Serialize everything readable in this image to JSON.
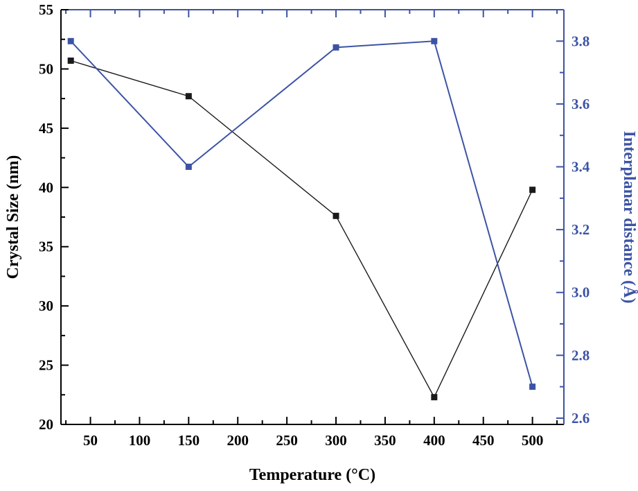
{
  "figure": {
    "background": "#ffffff"
  },
  "chart_data": {
    "type": "line",
    "title": "",
    "xlabel": "Temperature (°C)",
    "ylabel_left": "Crystal Size (nm)",
    "ylabel_right": "Interplanar distance (Å)",
    "x": [
      30,
      150,
      300,
      400,
      500
    ],
    "series": [
      {
        "name": "Crystal Size (nm)",
        "axis": "left",
        "color": "#1a1a1a",
        "marker": "square",
        "values": [
          50.7,
          47.7,
          37.6,
          22.3,
          39.8
        ]
      },
      {
        "name": "Interplanar distance (Å)",
        "axis": "right",
        "color": "#3c53a4",
        "marker": "square",
        "values": [
          3.8,
          3.4,
          3.78,
          3.8,
          2.7
        ]
      }
    ],
    "xlim": [
      20,
      532
    ],
    "x_ticks": [
      50,
      100,
      150,
      200,
      250,
      300,
      350,
      400,
      450,
      500
    ],
    "x_tick_labels": [
      "50",
      "100",
      "150",
      "200",
      "250",
      "300",
      "350",
      "400",
      "450",
      "500"
    ],
    "x_minor_step": 25,
    "ylim_left": [
      20,
      55
    ],
    "y_ticks_left": [
      20,
      25,
      30,
      35,
      40,
      45,
      50,
      55
    ],
    "y_tick_labels_left": [
      "20",
      "25",
      "30",
      "35",
      "40",
      "45",
      "50",
      "55"
    ],
    "y_minor_step_left": 2.5,
    "ylim_right": [
      2.58,
      3.9
    ],
    "y_ticks_right": [
      2.6,
      2.8,
      3.0,
      3.2,
      3.4,
      3.6,
      3.8
    ],
    "y_tick_labels_right": [
      "2.6",
      "2.8",
      "3.0",
      "3.2",
      "3.4",
      "3.6",
      "3.8"
    ],
    "y_minor_step_right": 0.1,
    "axis_color_left": "#000000",
    "axis_color_right": "#3c53a4",
    "grid": false,
    "legend": "none"
  }
}
